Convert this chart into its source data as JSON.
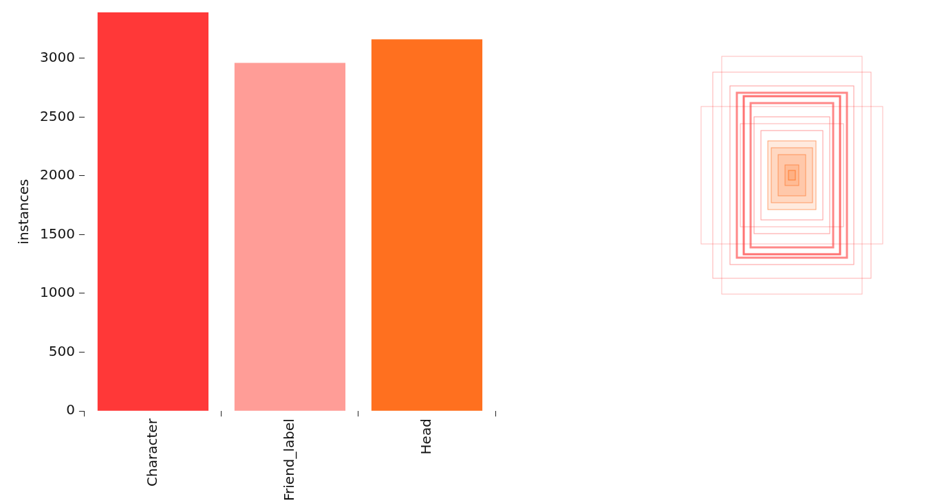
{
  "chart_data": {
    "type": "bar",
    "ylabel": "instances",
    "categories": [
      "Character",
      "Friend_label",
      "Head"
    ],
    "values": [
      3390,
      2960,
      3160
    ],
    "colors": [
      "#ff3838",
      "#ff9d97",
      "#ff701f"
    ],
    "ylim": [
      0,
      3390
    ],
    "yticks": [
      0,
      500,
      1000,
      1500,
      2000,
      2500,
      3000
    ],
    "grid": false,
    "legend": false
  }
}
